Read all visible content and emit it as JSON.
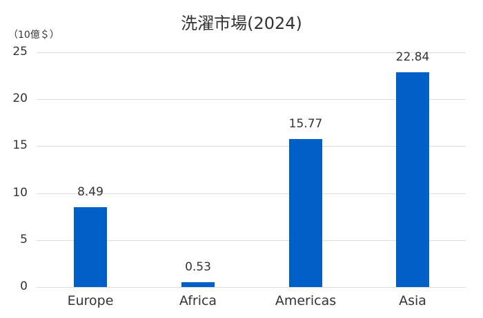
{
  "chart_data": {
    "type": "bar",
    "title": "洗濯市場(2024)",
    "unit_label": "（10億＄）",
    "xlabel": "",
    "ylabel": "（10億＄）",
    "categories": [
      "Europe",
      "Africa",
      "Americas",
      "Asia"
    ],
    "values": [
      8.49,
      0.53,
      15.77,
      22.84
    ],
    "value_labels": [
      "8.49",
      "0.53",
      "15.77",
      "22.84"
    ],
    "yticks": [
      "0",
      "5",
      "10",
      "15",
      "20",
      "25"
    ],
    "ylim": [
      0,
      25
    ],
    "grid": true,
    "legend": null,
    "bar_color": "#0060c8"
  }
}
